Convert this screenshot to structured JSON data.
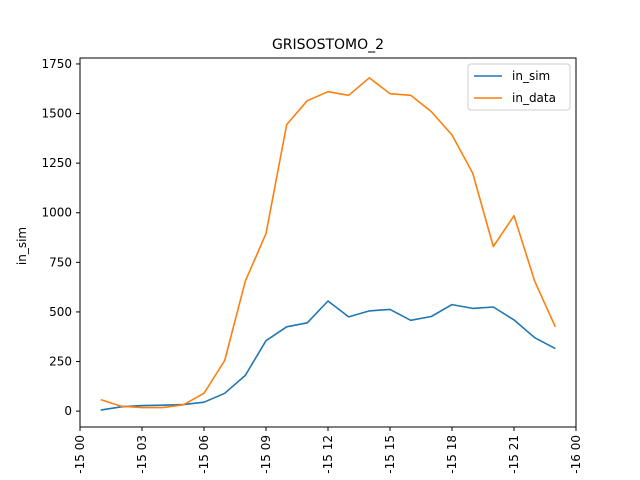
{
  "chart_data": {
    "type": "line",
    "title": "GRISOSTOMO_2",
    "xlabel": "",
    "ylabel": "in_sim",
    "x_hours": [
      1,
      2,
      3,
      4,
      5,
      6,
      7,
      8,
      9,
      10,
      11,
      12,
      13,
      14,
      15,
      16,
      17,
      18,
      19,
      20,
      21,
      22,
      23
    ],
    "xlim_hours": [
      0,
      24
    ],
    "ylim": [
      -80,
      1780
    ],
    "x_ticks": [
      {
        "hour": 0,
        "label": "-15 00"
      },
      {
        "hour": 3,
        "label": "-15 03"
      },
      {
        "hour": 6,
        "label": "-15 06"
      },
      {
        "hour": 9,
        "label": "-15 09"
      },
      {
        "hour": 12,
        "label": "-15 12"
      },
      {
        "hour": 15,
        "label": "-15 15"
      },
      {
        "hour": 18,
        "label": "-15 18"
      },
      {
        "hour": 21,
        "label": "-15 21"
      },
      {
        "hour": 24,
        "label": "-16 00"
      }
    ],
    "y_ticks": [
      0,
      250,
      500,
      750,
      1000,
      1250,
      1500,
      1750
    ],
    "legend_position": "top-right",
    "series": [
      {
        "name": "in_sim",
        "color": "#1f77b4",
        "values": [
          5,
          22,
          28,
          30,
          33,
          45,
          90,
          180,
          355,
          425,
          445,
          555,
          475,
          505,
          513,
          458,
          477,
          537,
          518,
          525,
          460,
          370,
          315
        ]
      },
      {
        "name": "in_data",
        "color": "#ff7f0e",
        "values": [
          58,
          25,
          18,
          18,
          32,
          90,
          255,
          655,
          895,
          1445,
          1565,
          1610,
          1592,
          1680,
          1600,
          1592,
          1510,
          1392,
          1200,
          830,
          985,
          655,
          425
        ]
      }
    ]
  }
}
